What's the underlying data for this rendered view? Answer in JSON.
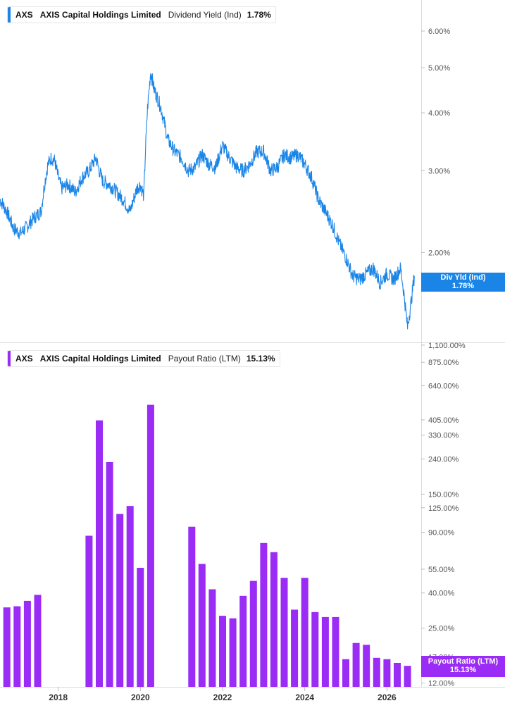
{
  "colors": {
    "dividend_yield": "#1a85e6",
    "payout_ratio": "#9a2cf5",
    "axis_text": "#555555",
    "grid": "#e4e4e4"
  },
  "legend_top": {
    "ticker": "AXS",
    "company": "AXIS Capital Holdings Limited",
    "metric": "Dividend Yield (Ind)",
    "value": "1.78%"
  },
  "legend_bottom": {
    "ticker": "AXS",
    "company": "AXIS Capital Holdings Limited",
    "metric": "Payout Ratio (LTM)",
    "value": "15.13%"
  },
  "tag_top": {
    "label": "Div Yld (Ind)",
    "value": "1.78%"
  },
  "tag_bottom": {
    "label": "Payout Ratio (LTM)",
    "value": "15.13%"
  },
  "chart_data": [
    {
      "type": "line",
      "series": [
        {
          "name": "Dividend Yield (Ind)"
        }
      ],
      "y_scale": "log",
      "y_ticks": [
        {
          "value": 6,
          "label": "6.00%"
        },
        {
          "value": 5,
          "label": "5.00%"
        },
        {
          "value": 4,
          "label": "4.00%"
        },
        {
          "value": 3,
          "label": "3.00%"
        },
        {
          "value": 2,
          "label": "2.00%"
        }
      ],
      "ylim": [
        1.28,
        7.0
      ],
      "xlim": [
        "2016-08",
        "2026-11"
      ],
      "points": [
        [
          "2016-08",
          2.6
        ],
        [
          "2016-10",
          2.45
        ],
        [
          "2016-12",
          2.25
        ],
        [
          "2017-02",
          2.2
        ],
        [
          "2017-04",
          2.28
        ],
        [
          "2017-06",
          2.38
        ],
        [
          "2017-08",
          2.45
        ],
        [
          "2017-09",
          2.8
        ],
        [
          "2017-10",
          3.1
        ],
        [
          "2017-11",
          3.2
        ],
        [
          "2017-12",
          3.15
        ],
        [
          "2018-01",
          2.9
        ],
        [
          "2018-02",
          2.75
        ],
        [
          "2018-04",
          2.8
        ],
        [
          "2018-06",
          2.7
        ],
        [
          "2018-08",
          2.9
        ],
        [
          "2018-10",
          3.0
        ],
        [
          "2018-12",
          3.2
        ],
        [
          "2019-01",
          3.0
        ],
        [
          "2019-02",
          2.85
        ],
        [
          "2019-04",
          2.8
        ],
        [
          "2019-06",
          2.7
        ],
        [
          "2019-08",
          2.6
        ],
        [
          "2019-10",
          2.45
        ],
        [
          "2019-12",
          2.75
        ],
        [
          "2020-01",
          2.8
        ],
        [
          "2020-02",
          2.65
        ],
        [
          "2020-03",
          4.0
        ],
        [
          "2020-04",
          4.9
        ],
        [
          "2020-05",
          4.5
        ],
        [
          "2020-06",
          4.3
        ],
        [
          "2020-07",
          4.1
        ],
        [
          "2020-08",
          3.8
        ],
        [
          "2020-09",
          3.5
        ],
        [
          "2020-11",
          3.3
        ],
        [
          "2021-01",
          3.2
        ],
        [
          "2021-03",
          3.0
        ],
        [
          "2021-05",
          3.05
        ],
        [
          "2021-07",
          3.25
        ],
        [
          "2021-09",
          3.1
        ],
        [
          "2021-11",
          3.05
        ],
        [
          "2022-01",
          3.4
        ],
        [
          "2022-03",
          3.2
        ],
        [
          "2022-05",
          3.05
        ],
        [
          "2022-07",
          3.0
        ],
        [
          "2022-09",
          3.1
        ],
        [
          "2022-11",
          3.3
        ],
        [
          "2023-01",
          3.3
        ],
        [
          "2023-03",
          3.0
        ],
        [
          "2023-05",
          3.05
        ],
        [
          "2023-07",
          3.25
        ],
        [
          "2023-09",
          3.2
        ],
        [
          "2023-11",
          3.25
        ],
        [
          "2024-01",
          3.1
        ],
        [
          "2024-03",
          2.9
        ],
        [
          "2024-05",
          2.6
        ],
        [
          "2024-07",
          2.45
        ],
        [
          "2024-09",
          2.3
        ],
        [
          "2024-11",
          2.1
        ],
        [
          "2025-01",
          1.95
        ],
        [
          "2025-03",
          1.78
        ],
        [
          "2025-05",
          1.75
        ],
        [
          "2025-07",
          1.8
        ],
        [
          "2025-09",
          1.85
        ],
        [
          "2025-11",
          1.72
        ],
        [
          "2026-01",
          1.8
        ],
        [
          "2026-03",
          1.75
        ],
        [
          "2026-05",
          1.85
        ],
        [
          "2026-06",
          1.62
        ],
        [
          "2026-07",
          1.38
        ],
        [
          "2026-08",
          1.55
        ],
        [
          "2026-09",
          1.78
        ]
      ]
    },
    {
      "type": "bar",
      "series": [
        {
          "name": "Payout Ratio (LTM)"
        }
      ],
      "y_scale": "log",
      "y_ticks": [
        {
          "value": 1100,
          "label": "1,100.00%"
        },
        {
          "value": 875,
          "label": "875.00%"
        },
        {
          "value": 640,
          "label": "640.00%"
        },
        {
          "value": 405,
          "label": "405.00%"
        },
        {
          "value": 330,
          "label": "330.00%"
        },
        {
          "value": 240,
          "label": "240.00%"
        },
        {
          "value": 150,
          "label": "150.00%"
        },
        {
          "value": 125,
          "label": "125.00%"
        },
        {
          "value": 90,
          "label": "90.00%"
        },
        {
          "value": 55,
          "label": "55.00%"
        },
        {
          "value": 40,
          "label": "40.00%"
        },
        {
          "value": 25,
          "label": "25.00%"
        },
        {
          "value": 17,
          "label": "17.00%"
        },
        {
          "value": 12,
          "label": "12.00%"
        }
      ],
      "ylim": [
        11.4,
        1130
      ],
      "xlim": [
        "2016-08",
        "2026-11"
      ],
      "x_ticks": [
        "2018",
        "2020",
        "2022",
        "2024",
        "2026"
      ],
      "bars": [
        [
          "2016-10",
          33
        ],
        [
          "2017-01",
          33.5
        ],
        [
          "2017-04",
          36
        ],
        [
          "2017-07",
          39
        ],
        [
          "2018-10",
          86
        ],
        [
          "2019-01",
          402
        ],
        [
          "2019-04",
          230
        ],
        [
          "2019-07",
          115
        ],
        [
          "2019-10",
          128
        ],
        [
          "2020-01",
          56
        ],
        [
          "2020-04",
          495
        ],
        [
          "2021-04",
          97
        ],
        [
          "2021-07",
          59
        ],
        [
          "2021-10",
          42
        ],
        [
          "2022-01",
          29.5
        ],
        [
          "2022-04",
          28.5
        ],
        [
          "2022-07",
          38.5
        ],
        [
          "2022-10",
          47
        ],
        [
          "2023-01",
          78
        ],
        [
          "2023-04",
          69
        ],
        [
          "2023-07",
          49
        ],
        [
          "2023-10",
          32
        ],
        [
          "2024-01",
          49
        ],
        [
          "2024-04",
          31
        ],
        [
          "2024-07",
          29
        ],
        [
          "2024-10",
          29
        ],
        [
          "2025-01",
          16.5
        ],
        [
          "2025-04",
          20.5
        ],
        [
          "2025-07",
          20
        ],
        [
          "2025-10",
          16.8
        ],
        [
          "2026-01",
          16.5
        ],
        [
          "2026-04",
          15.7
        ],
        [
          "2026-07",
          15.1
        ]
      ]
    }
  ]
}
